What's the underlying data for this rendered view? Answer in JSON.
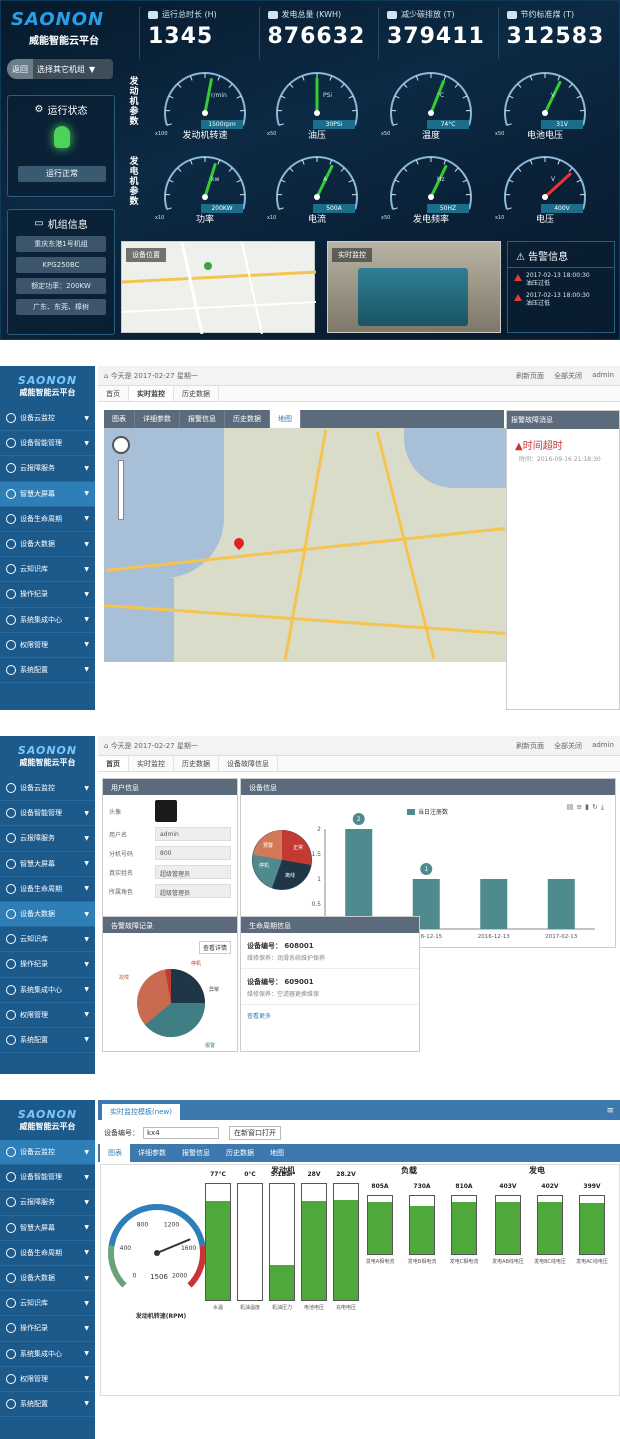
{
  "dashboard": {
    "logo_mark": "SAONON",
    "logo_sub": "威能智能云平台",
    "stats": [
      {
        "label": "运行总时长 (H)",
        "value": "1345"
      },
      {
        "label": "发电总量 (KWH)",
        "value": "876632"
      },
      {
        "label": "减少碳排放 (T)",
        "value": "379411"
      },
      {
        "label": "节约标准煤 (T)",
        "value": "312583"
      }
    ],
    "back_label": "返回",
    "select_label": "选择其它机组",
    "status_title": "运行状态",
    "status_value": "运行正常",
    "info_title": "机组信息",
    "info_items": [
      "重庆东港1号机组",
      "KPG250BC",
      "额定功率：200KW",
      "广东、东莞、樟树"
    ],
    "engine_side": "发动机参数",
    "gen_side": "发电机参数",
    "gauges": [
      {
        "label": "发动机转速",
        "value": "1500rpm",
        "unit": "r/min",
        "mult": "x100",
        "level": 0.55
      },
      {
        "label": "油压",
        "value": "30PSi",
        "unit": "PSi",
        "mult": "x50",
        "level": 0.5
      },
      {
        "label": "温度",
        "value": "74°C",
        "unit": "°C",
        "mult": "x50",
        "level": 0.6
      },
      {
        "label": "电池电压",
        "value": "31V",
        "unit": "V",
        "mult": "x50",
        "level": 0.62
      },
      {
        "label": "功率",
        "value": "200KW",
        "unit": "kw",
        "mult": "x10",
        "level": 0.58
      },
      {
        "label": "电流",
        "value": "500A",
        "unit": "A",
        "mult": "x10",
        "level": 0.62
      },
      {
        "label": "发电频率",
        "value": "50HZ",
        "unit": "Hz",
        "mult": "x50",
        "level": 0.62
      },
      {
        "label": "电压",
        "value": "400V",
        "unit": "V",
        "mult": "x10",
        "level": 0.72
      }
    ],
    "map_tag": "设备位置",
    "video_tag": "实时监控",
    "alarm_title": "告警信息",
    "alarms": [
      {
        "time": "2017-02-13 18:00:30",
        "text": "油压过低"
      },
      {
        "time": "2017-02-13 18:00:30",
        "text": "油压过低"
      }
    ]
  },
  "sidebar": {
    "logo_mark": "SAONON",
    "logo_sub": "威能智能云平台",
    "items": [
      "设备云监控",
      "设备智能管理",
      "云报障服务",
      "智慧大屏幕",
      "设备生命周期",
      "设备大数据",
      "云知识库",
      "操作纪录",
      "系统集成中心",
      "权限管理",
      "系统配置"
    ]
  },
  "topbar": {
    "date": "今天是 2017-02-27 星期一",
    "refresh": "刷新页面",
    "close_all": "全部关闭",
    "user": "admin"
  },
  "mapview": {
    "tabs": [
      "首页",
      "实时监控",
      "历史数据"
    ],
    "subtabs": [
      "图表",
      "详细参数",
      "报警信息",
      "历史数据",
      "地图"
    ],
    "alarm_panel_title": "报警故障消息",
    "alarm_item": "时间超时",
    "alarm_time": "时间：2016-09-16 21:18:30"
  },
  "home": {
    "tabs": [
      "首页",
      "实时监控",
      "历史数据",
      "设备故障信息"
    ],
    "user_card": "用户信息",
    "device_card": "设备信息",
    "fields": [
      {
        "label": "头像",
        "value": ""
      },
      {
        "label": "用户名",
        "value": "admin"
      },
      {
        "label": "分机号码",
        "value": "800"
      },
      {
        "label": "真实姓名",
        "value": "超级管理员"
      },
      {
        "label": "所属角色",
        "value": "超级管理员"
      }
    ],
    "legend": "当日注册数",
    "alarm_card": "告警故障记录",
    "alarm_btn": "查看详情",
    "pie_labels": [
      "停机",
      "故障",
      "异常",
      "报警"
    ],
    "device_pie_labels": [
      "正常",
      "离线",
      "停机",
      "预警"
    ],
    "life_card": "生命周期信息",
    "devices": [
      {
        "code": "设备编号： 608001",
        "desc": "维修保养：润滑系统维护保养"
      },
      {
        "code": "设备编号： 609001",
        "desc": "维修保养：空滤器更换维保"
      }
    ],
    "more": "查看更多"
  },
  "chart_data": {
    "type": "bar",
    "categories": [
      "2016-12-19",
      "2016-12-15",
      "2016-12-13",
      "2017-02-13"
    ],
    "values": [
      2,
      1,
      1,
      1
    ],
    "ylim": [
      0,
      2
    ],
    "yticks": [
      "2",
      "1.5",
      "1",
      "0.5",
      "0"
    ],
    "legend": "当日注册数"
  },
  "monitor": {
    "tab": "实时监控模板(new)",
    "device_label": "设备编号：",
    "device_value": "kx4",
    "new_window": "在新窗口打开",
    "subtabs": [
      "图表",
      "详细参数",
      "报警信息",
      "历史数据",
      "地图"
    ],
    "rpm_label": "发动机转速(RPM)",
    "rpm_value": "1506",
    "rpm_level": 0.75,
    "rpm_ticks": [
      "0",
      "400",
      "800",
      "1200",
      "1600",
      "2000"
    ],
    "groups": [
      "发动机",
      "负载",
      "发电"
    ],
    "engine": [
      {
        "label": "水温",
        "value": "77°C",
        "level": 0.85
      },
      {
        "label": "机油温度",
        "value": "0°C",
        "level": 0.0
      },
      {
        "label": "机油压力",
        "value": "5.1Bar",
        "level": 0.3
      },
      {
        "label": "电池电压",
        "value": "28V",
        "level": 0.85
      },
      {
        "label": "充电电压",
        "value": "28.2V",
        "level": 0.86
      }
    ],
    "load": [
      {
        "label": "发电A相电流",
        "value": "805A",
        "level": 0.9
      },
      {
        "label": "发电B相电流",
        "value": "730A",
        "level": 0.82
      },
      {
        "label": "发电C相电流",
        "value": "810A",
        "level": 0.9
      }
    ],
    "gen": [
      {
        "label": "发电AB线电压",
        "value": "403V",
        "level": 0.9
      },
      {
        "label": "发电BC线电压",
        "value": "402V",
        "level": 0.9
      },
      {
        "label": "发电AC线电压",
        "value": "399V",
        "level": 0.88
      }
    ]
  }
}
